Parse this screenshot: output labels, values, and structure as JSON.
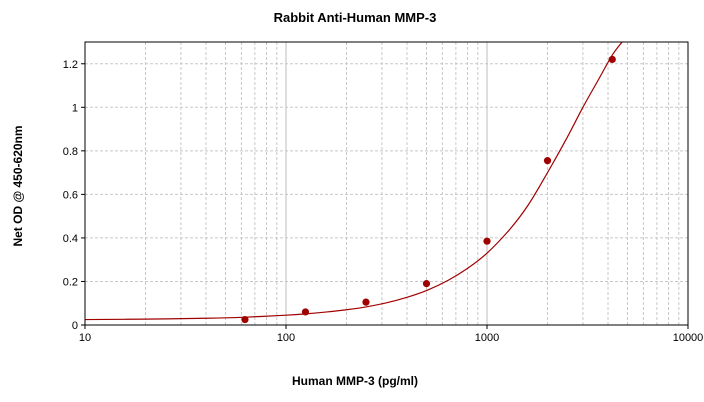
{
  "chart_data": {
    "type": "scatter",
    "title": "Rabbit Anti-Human MMP-3",
    "xlabel": "Human MMP-3 (pg/ml)",
    "ylabel": "Net OD @ 450-620nm",
    "x_scale": "log",
    "xlim": [
      10,
      10000
    ],
    "ylim": [
      0,
      1.3
    ],
    "x_ticks": [
      "10",
      "100",
      "1000",
      "10000"
    ],
    "y_ticks": [
      "0",
      "0.2",
      "0.4",
      "0.6",
      "0.8",
      "1",
      "1.2"
    ],
    "grid": true,
    "legend": "none",
    "series": [
      {
        "style": "points",
        "color": "#a00000",
        "x": [
          62.5,
          125,
          250,
          500,
          1000,
          2000,
          4200
        ],
        "y": [
          0.025,
          0.06,
          0.105,
          0.19,
          0.385,
          0.755,
          1.22
        ]
      },
      {
        "style": "fit-line",
        "color": "#a00000",
        "x": [
          10,
          20,
          40,
          62.5,
          100,
          125,
          160,
          200,
          250,
          320,
          400,
          500,
          640,
          800,
          1000,
          1300,
          1600,
          2000,
          2500,
          3000,
          3600,
          4200,
          4700
        ],
        "y": [
          0.025,
          0.027,
          0.031,
          0.036,
          0.045,
          0.051,
          0.06,
          0.07,
          0.083,
          0.103,
          0.127,
          0.158,
          0.205,
          0.26,
          0.33,
          0.44,
          0.55,
          0.7,
          0.86,
          1.0,
          1.13,
          1.24,
          1.3
        ]
      }
    ]
  }
}
